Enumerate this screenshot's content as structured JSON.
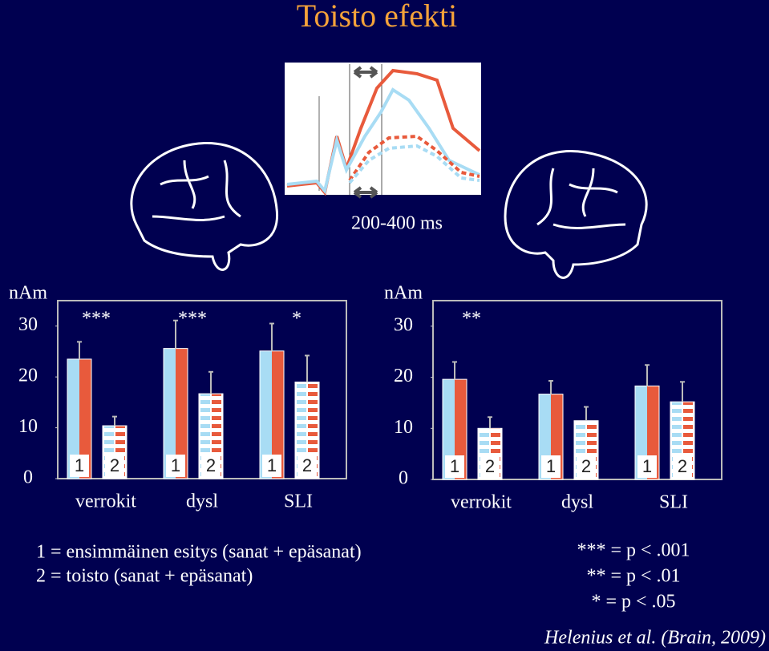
{
  "title": "Toisto efekti",
  "window_label": "200-400 ms",
  "chart_data": [
    {
      "type": "bar",
      "y_label": "nAm",
      "categories": [
        "verrokit",
        "dysl",
        "SLI"
      ],
      "annotations": [
        "***",
        "***",
        "*"
      ],
      "colors": [
        "#a8dcf4",
        "#e85a3c"
      ],
      "series": [
        {
          "name": "1",
          "style": "solid",
          "values": [
            23.5,
            25.6,
            25.1
          ],
          "errors": [
            3.4,
            5.5,
            5.4
          ]
        },
        {
          "name": "2",
          "style": "dashed",
          "values": [
            10.4,
            16.7,
            19
          ],
          "errors": [
            1.8,
            4.3,
            5.2
          ]
        }
      ],
      "ylim": [
        0,
        35
      ],
      "yticks": [
        0,
        10,
        20,
        30
      ]
    },
    {
      "type": "bar",
      "y_label": "nAm",
      "categories": [
        "verrokit",
        "dysl",
        "SLI"
      ],
      "annotations": [
        "**",
        null,
        null
      ],
      "colors": [
        "#a8dcf4",
        "#e85a3c"
      ],
      "series": [
        {
          "name": "1",
          "style": "solid",
          "values": [
            19.6,
            16.7,
            18.3
          ],
          "errors": [
            3.4,
            2.6,
            4.1
          ]
        },
        {
          "name": "2",
          "style": "dashed",
          "values": [
            10,
            11.5,
            15.2
          ],
          "errors": [
            2.2,
            2.7,
            3.9
          ]
        }
      ],
      "ylim": [
        0,
        35
      ],
      "yticks": [
        0,
        10,
        20,
        30
      ]
    }
  ],
  "legend_lines": [
    "1 = ensimmäinen esitys (sanat + epäsanat)",
    "2 = toisto (sanat + epäsanat)"
  ],
  "significance": [
    "*** = p < .001",
    "** = p < .01",
    "* = p < .05"
  ],
  "citation": "Helenius et al. (Brain, 2009)"
}
